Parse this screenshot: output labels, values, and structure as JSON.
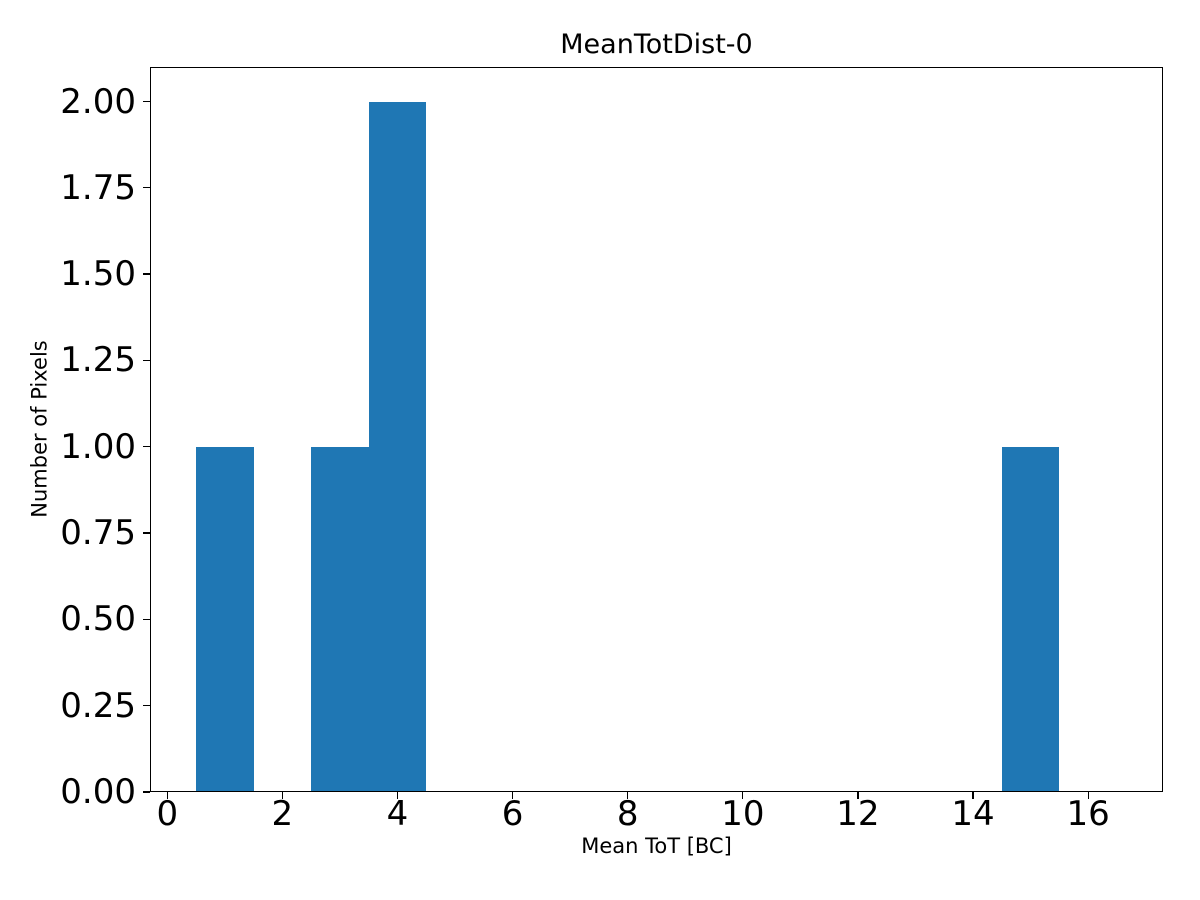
{
  "figure": {
    "background": "#ffffff"
  },
  "chart_data": {
    "type": "bar",
    "subtype": "histogram",
    "title": "MeanTotDist-0",
    "xlabel": "Mean ToT [BC]",
    "ylabel": "Number of Pixels",
    "bar_color": "#1f77b4",
    "axis_color": "#000000",
    "text_color": "#000000",
    "grid": false,
    "legend": false,
    "xlim": [
      -0.3,
      17.3
    ],
    "ylim": [
      0,
      2.1
    ],
    "xticks": [
      {
        "value": 0,
        "label": "0"
      },
      {
        "value": 2,
        "label": "2"
      },
      {
        "value": 4,
        "label": "4"
      },
      {
        "value": 6,
        "label": "6"
      },
      {
        "value": 8,
        "label": "8"
      },
      {
        "value": 10,
        "label": "10"
      },
      {
        "value": 12,
        "label": "12"
      },
      {
        "value": 14,
        "label": "14"
      },
      {
        "value": 16,
        "label": "16"
      }
    ],
    "yticks": [
      {
        "value": 0,
        "label": "0.00"
      },
      {
        "value": 0.25,
        "label": "0.25"
      },
      {
        "value": 0.5,
        "label": "0.50"
      },
      {
        "value": 0.75,
        "label": "0.75"
      },
      {
        "value": 1,
        "label": "1.00"
      },
      {
        "value": 1.25,
        "label": "1.25"
      },
      {
        "value": 1.5,
        "label": "1.50"
      },
      {
        "value": 1.75,
        "label": "1.75"
      },
      {
        "value": 2,
        "label": "2.00"
      }
    ],
    "bins": [
      {
        "x0": 0.5,
        "x1": 1.5,
        "count": 1
      },
      {
        "x0": 2.5,
        "x1": 3.5,
        "count": 1
      },
      {
        "x0": 3.5,
        "x1": 4.5,
        "count": 2
      },
      {
        "x0": 14.5,
        "x1": 15.5,
        "count": 1
      }
    ]
  }
}
